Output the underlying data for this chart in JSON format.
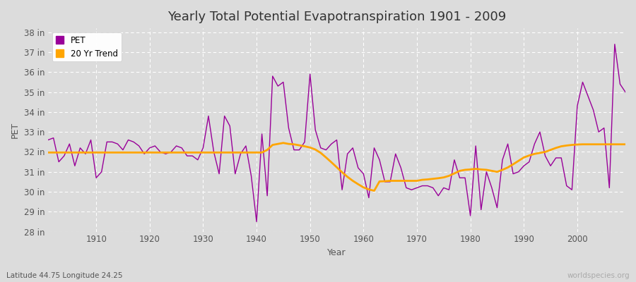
{
  "title": "Yearly Total Potential Evapotranspiration 1901 - 2009",
  "xlabel": "Year",
  "ylabel": "PET",
  "subtitle": "Latitude 44.75 Longitude 24.25",
  "watermark": "worldspecies.org",
  "years": [
    1901,
    1902,
    1903,
    1904,
    1905,
    1906,
    1907,
    1908,
    1909,
    1910,
    1911,
    1912,
    1913,
    1914,
    1915,
    1916,
    1917,
    1918,
    1919,
    1920,
    1921,
    1922,
    1923,
    1924,
    1925,
    1926,
    1927,
    1928,
    1929,
    1930,
    1931,
    1932,
    1933,
    1934,
    1935,
    1936,
    1937,
    1938,
    1939,
    1940,
    1941,
    1942,
    1943,
    1944,
    1945,
    1946,
    1947,
    1948,
    1949,
    1950,
    1951,
    1952,
    1953,
    1954,
    1955,
    1956,
    1957,
    1958,
    1959,
    1960,
    1961,
    1962,
    1963,
    1964,
    1965,
    1966,
    1967,
    1968,
    1969,
    1970,
    1971,
    1972,
    1973,
    1974,
    1975,
    1976,
    1977,
    1978,
    1979,
    1980,
    1981,
    1982,
    1983,
    1984,
    1985,
    1986,
    1987,
    1988,
    1989,
    1990,
    1991,
    1992,
    1993,
    1994,
    1995,
    1996,
    1997,
    1998,
    1999,
    2000,
    2001,
    2002,
    2003,
    2004,
    2005,
    2006,
    2007,
    2008,
    2009
  ],
  "pet_values": [
    32.6,
    32.7,
    31.5,
    31.8,
    32.4,
    31.3,
    32.2,
    31.9,
    32.6,
    30.7,
    31.0,
    32.5,
    32.5,
    32.4,
    32.1,
    32.6,
    32.5,
    32.3,
    31.9,
    32.2,
    32.3,
    32.0,
    31.9,
    32.0,
    32.3,
    32.2,
    31.8,
    31.8,
    31.6,
    32.2,
    33.8,
    32.0,
    30.9,
    33.8,
    33.3,
    30.9,
    31.9,
    32.3,
    30.8,
    28.5,
    32.9,
    29.8,
    35.8,
    35.3,
    35.5,
    33.2,
    32.1,
    32.1,
    32.5,
    35.9,
    33.1,
    32.2,
    32.1,
    32.4,
    32.6,
    30.1,
    31.9,
    32.2,
    31.2,
    30.9,
    29.7,
    32.2,
    31.6,
    30.5,
    30.5,
    31.9,
    31.2,
    30.2,
    30.1,
    30.2,
    30.3,
    30.3,
    30.2,
    29.8,
    30.2,
    30.1,
    31.6,
    30.7,
    30.7,
    28.8,
    32.3,
    29.1,
    31.0,
    30.2,
    29.2,
    31.6,
    32.4,
    30.9,
    31.0,
    31.3,
    31.5,
    32.4,
    33.0,
    31.8,
    31.3,
    31.7,
    31.7,
    30.3,
    30.1,
    34.3,
    35.5,
    34.8,
    34.1,
    33.0,
    33.2,
    30.2,
    37.4,
    35.4,
    35.0
  ],
  "trend_years": [
    1901,
    1902,
    1903,
    1904,
    1905,
    1906,
    1907,
    1908,
    1909,
    1910,
    1911,
    1912,
    1913,
    1914,
    1915,
    1916,
    1917,
    1918,
    1919,
    1920,
    1921,
    1922,
    1923,
    1924,
    1925,
    1926,
    1927,
    1928,
    1929,
    1930,
    1931,
    1932,
    1933,
    1934,
    1935,
    1936,
    1937,
    1938,
    1939,
    1940,
    1941,
    1942,
    1943,
    1944,
    1945,
    1946,
    1947,
    1948,
    1949,
    1950,
    1951,
    1952,
    1953,
    1954,
    1955,
    1956,
    1957,
    1958,
    1959,
    1960,
    1961,
    1962,
    1963,
    1964,
    1965,
    1966,
    1967,
    1968,
    1969,
    1970,
    1971,
    1972,
    1973,
    1974,
    1975,
    1976,
    1977,
    1978,
    1979,
    1980,
    1981,
    1982,
    1983,
    1984,
    1985,
    1986,
    1987,
    1988,
    1989,
    1990,
    1991,
    1992,
    1993,
    1994,
    1995,
    1996,
    1997,
    1998,
    1999,
    2000,
    2001,
    2002,
    2003,
    2004,
    2005,
    2006,
    2007,
    2008,
    2009
  ],
  "trend_values": [
    31.97,
    31.97,
    31.97,
    31.97,
    31.97,
    31.97,
    31.97,
    31.97,
    31.97,
    31.97,
    31.97,
    31.97,
    31.97,
    31.97,
    31.97,
    31.97,
    31.97,
    31.97,
    31.97,
    31.97,
    31.97,
    31.97,
    31.97,
    31.97,
    31.97,
    31.97,
    31.97,
    31.97,
    31.97,
    31.97,
    31.97,
    31.97,
    31.97,
    31.97,
    31.97,
    31.97,
    31.97,
    31.97,
    31.97,
    31.97,
    31.97,
    32.1,
    32.35,
    32.4,
    32.45,
    32.4,
    32.38,
    32.33,
    32.28,
    32.22,
    32.12,
    31.95,
    31.72,
    31.48,
    31.23,
    30.98,
    30.75,
    30.55,
    30.38,
    30.22,
    30.12,
    30.05,
    30.52,
    30.53,
    30.55,
    30.55,
    30.55,
    30.55,
    30.55,
    30.55,
    30.6,
    30.62,
    30.65,
    30.68,
    30.72,
    30.8,
    30.92,
    31.05,
    31.1,
    31.12,
    31.15,
    31.12,
    31.1,
    31.05,
    31.0,
    31.1,
    31.22,
    31.38,
    31.55,
    31.72,
    31.82,
    31.9,
    31.95,
    32.0,
    32.1,
    32.2,
    32.28,
    32.32,
    32.35,
    32.37,
    32.38,
    32.38,
    32.38,
    32.38,
    32.38,
    32.38,
    32.38,
    32.38,
    32.38
  ],
  "pet_color": "#990099",
  "trend_color": "#FFA500",
  "bg_color": "#DCDCDC",
  "plot_bg_color": "#DCDCDC",
  "grid_color": "#FFFFFF",
  "ylim": [
    28,
    38.2
  ],
  "yticks": [
    28,
    29,
    30,
    31,
    32,
    33,
    34,
    35,
    36,
    37,
    38
  ],
  "ytick_labels": [
    "28 in",
    "29 in",
    "30 in",
    "31 in",
    "32 in",
    "33 in",
    "34 in",
    "35 in",
    "36 in",
    "37 in",
    "38 in"
  ],
  "xlim": [
    1901,
    2009
  ],
  "xticks": [
    1910,
    1920,
    1930,
    1940,
    1950,
    1960,
    1970,
    1980,
    1990,
    2000
  ],
  "title_fontsize": 13,
  "axis_fontsize": 9,
  "tick_fontsize": 8.5,
  "legend_fontsize": 8.5
}
